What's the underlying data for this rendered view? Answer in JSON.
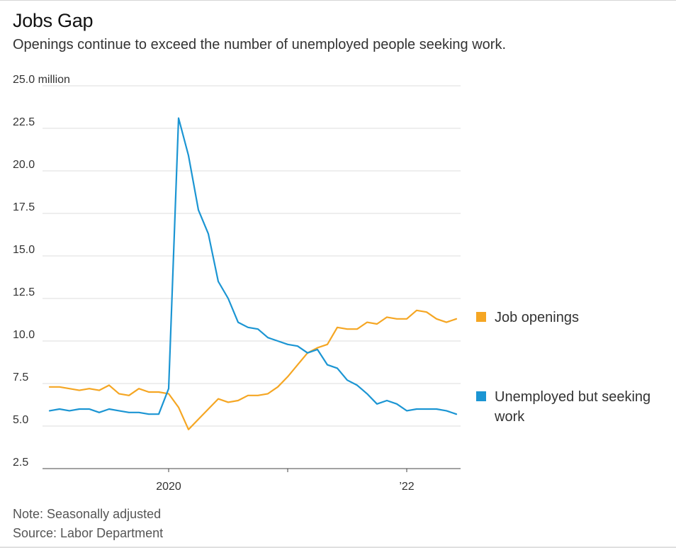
{
  "header": {
    "title": "Jobs Gap",
    "subtitle": "Openings continue to exceed the number of unemployed people seeking work."
  },
  "footer": {
    "note": "Note: Seasonally adjusted",
    "source": "Source: Labor Department"
  },
  "colors": {
    "job_openings": "#F5A623",
    "unemployed": "#1B95D3",
    "grid": "#dddddd",
    "axis": "#444444"
  },
  "chart_data": {
    "type": "line",
    "title": "Jobs Gap",
    "subtitle": "Openings continue to exceed the number of unemployed people seeking work.",
    "xlabel": "",
    "ylabel": "",
    "y_unit_label": "25.0 million",
    "ylim": [
      2.5,
      25.0
    ],
    "y_ticks": [
      {
        "value": 25.0,
        "label": "25.0 million"
      },
      {
        "value": 22.5,
        "label": "22.5"
      },
      {
        "value": 20.0,
        "label": "20.0"
      },
      {
        "value": 17.5,
        "label": "17.5"
      },
      {
        "value": 15.0,
        "label": "15.0"
      },
      {
        "value": 12.5,
        "label": "12.5"
      },
      {
        "value": 10.0,
        "label": "10.0"
      },
      {
        "value": 7.5,
        "label": "7.5"
      },
      {
        "value": 5.0,
        "label": "5.0"
      },
      {
        "value": 2.5,
        "label": "2.5"
      }
    ],
    "x_start": "2019-01",
    "x_end": "2022-05",
    "x_ticks": [
      {
        "month_index": 12,
        "label": "2020"
      },
      {
        "month_index": 24,
        "label": ""
      },
      {
        "month_index": 36,
        "label": "’22"
      }
    ],
    "grid": true,
    "legend_position": "right",
    "series": [
      {
        "name": "Job openings",
        "key": "job_openings",
        "values": [
          7.3,
          7.3,
          7.2,
          7.1,
          7.2,
          7.1,
          7.4,
          6.9,
          6.8,
          7.2,
          7.0,
          7.0,
          6.9,
          6.1,
          4.8,
          5.4,
          6.0,
          6.6,
          6.4,
          6.5,
          6.8,
          6.8,
          6.9,
          7.3,
          7.9,
          8.6,
          9.3,
          9.6,
          9.8,
          10.8,
          10.7,
          10.7,
          11.1,
          11.0,
          11.4,
          11.3,
          11.3,
          11.8,
          11.7,
          11.3,
          11.1,
          11.3
        ]
      },
      {
        "name": "Unemployed but seeking work",
        "key": "unemployed",
        "values": [
          5.9,
          6.0,
          5.9,
          6.0,
          6.0,
          5.8,
          6.0,
          5.9,
          5.8,
          5.8,
          5.7,
          5.7,
          7.2,
          23.1,
          20.9,
          17.7,
          16.3,
          13.5,
          12.5,
          11.1,
          10.8,
          10.7,
          10.2,
          10.0,
          9.8,
          9.7,
          9.3,
          9.5,
          8.6,
          8.4,
          7.7,
          7.4,
          6.9,
          6.3,
          6.5,
          6.3,
          5.9,
          6.0,
          6.0,
          6.0,
          5.9,
          5.7
        ]
      }
    ]
  },
  "legend": {
    "job_openings": "Job openings",
    "unemployed": "Unemployed but seeking work"
  }
}
